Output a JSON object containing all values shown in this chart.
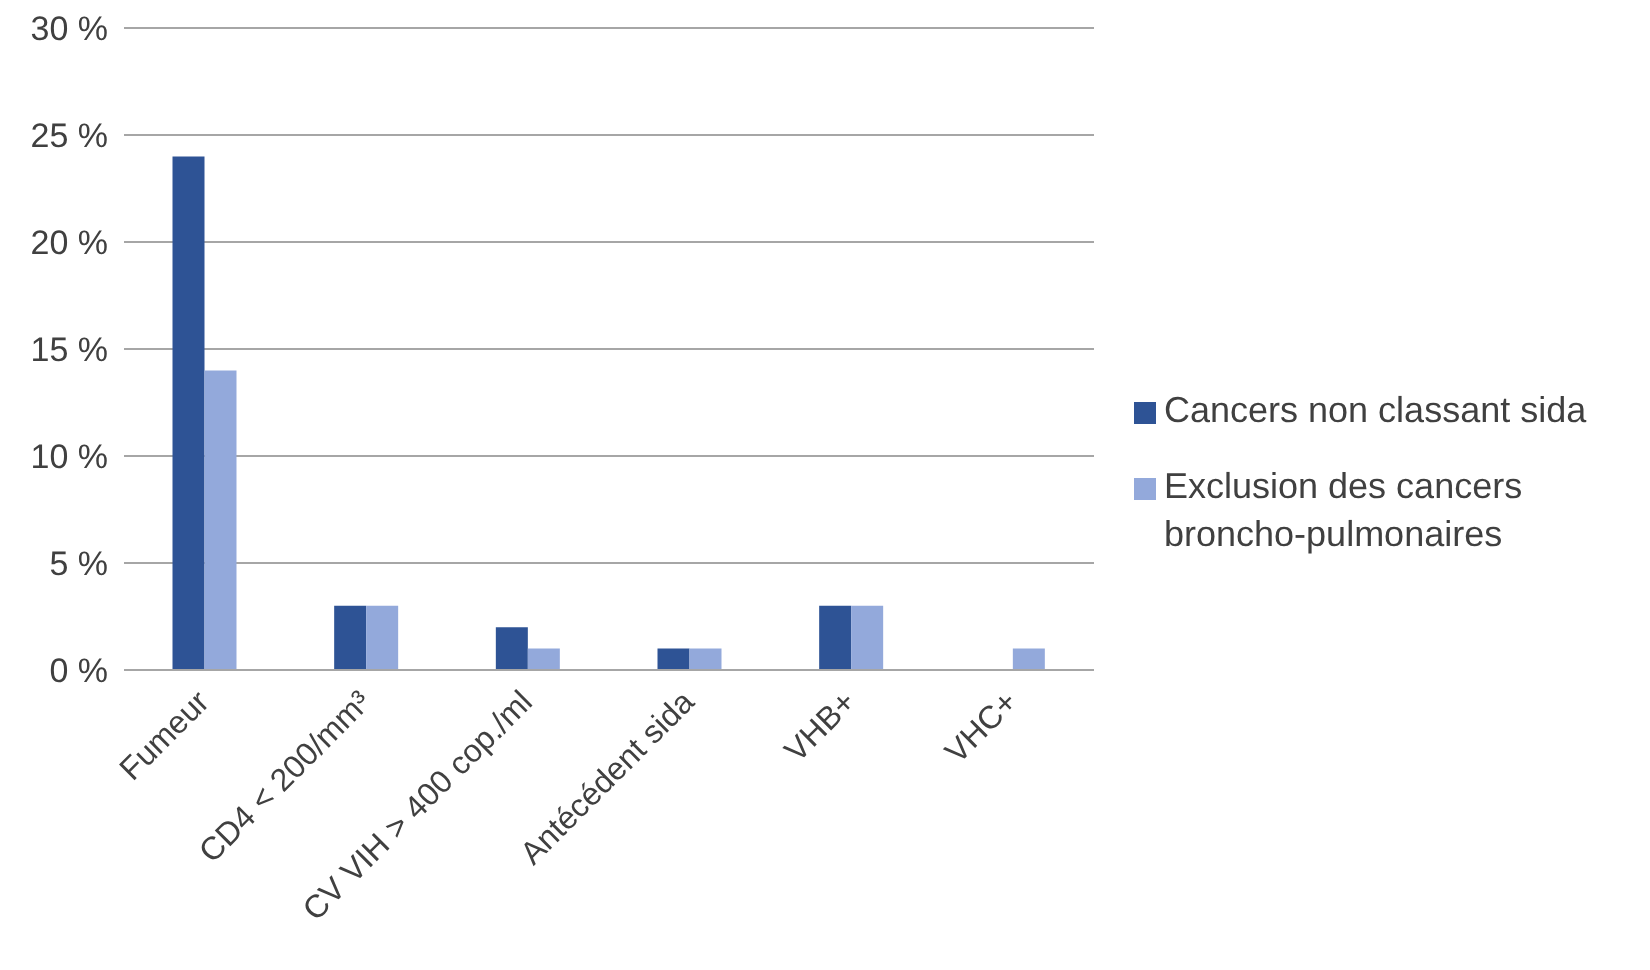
{
  "chart_data": {
    "type": "bar",
    "categories": [
      "Fumeur",
      "CD4 < 200/mm³",
      "CV VIH > 400 cop./ml",
      "Antécédent sida",
      "VHB+",
      "VHC+"
    ],
    "series": [
      {
        "name": "Cancers non classant sida",
        "color": "#2e5395",
        "values": [
          24,
          3,
          2,
          1,
          3,
          0
        ]
      },
      {
        "name": "Exclusion des cancers broncho-pulmonaires",
        "color": "#93a9db",
        "values": [
          14,
          3,
          1,
          1,
          3,
          1
        ]
      }
    ],
    "ylim": [
      0,
      30
    ],
    "yticks": [
      {
        "value": 0,
        "label": "0 %"
      },
      {
        "value": 5,
        "label": "5 %"
      },
      {
        "value": 10,
        "label": "10 %"
      },
      {
        "value": 15,
        "label": "15 %"
      },
      {
        "value": 20,
        "label": "20 %"
      },
      {
        "value": 25,
        "label": "25 %"
      },
      {
        "value": 30,
        "label": "30 %"
      }
    ],
    "grid": "y",
    "legend": "right"
  }
}
